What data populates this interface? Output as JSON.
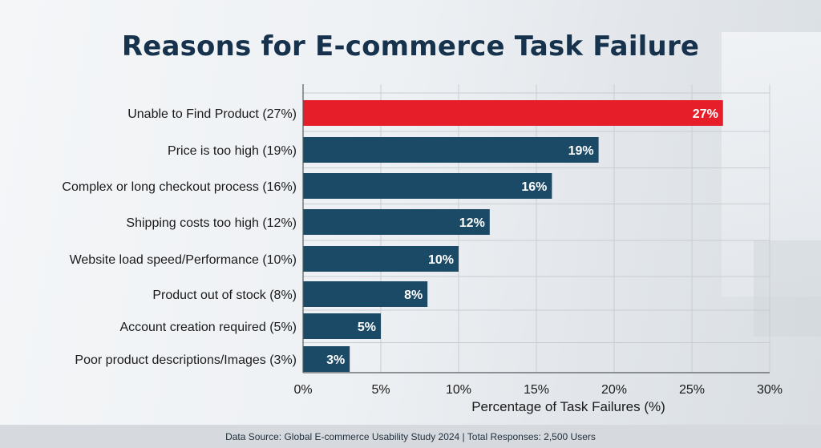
{
  "chart_data": {
    "type": "bar",
    "orientation": "horizontal",
    "title": "Reasons for E-commerce Task Failure",
    "categories": [
      "Unable to Find Product (27%)",
      "Price is too high (19%)",
      "Complex or long checkout process (16%)",
      "Shipping costs too high (12%)",
      "Website load speed/Performance (10%)",
      "Product out of stock (8%)",
      "Account creation required (5%)",
      "Poor product descriptions/Images (3%)"
    ],
    "values": [
      27,
      19,
      16,
      12,
      10,
      8,
      5,
      3
    ],
    "data_labels": [
      "27%",
      "19%",
      "16%",
      "12%",
      "10%",
      "8%",
      "5%",
      "3%"
    ],
    "highlight_index": 0,
    "xlim": [
      0,
      30
    ],
    "xticks": [
      0,
      5,
      10,
      15,
      20,
      25,
      30
    ],
    "xtick_labels": [
      "0%",
      "5%",
      "10%",
      "15%",
      "20%",
      "25%",
      "30%"
    ],
    "xlabel": "Percentage of Task Failures (%)",
    "ylabel": "",
    "grid": true,
    "colors": {
      "highlight": "#e61e2a",
      "bar": "#1b4a66",
      "grid": "#c9cdd2",
      "text": "#1a1a1a"
    }
  },
  "footer": {
    "source": "Data Source: Global E-commerce Usability Study 2024 | Total Responses: 2,500 Users"
  }
}
